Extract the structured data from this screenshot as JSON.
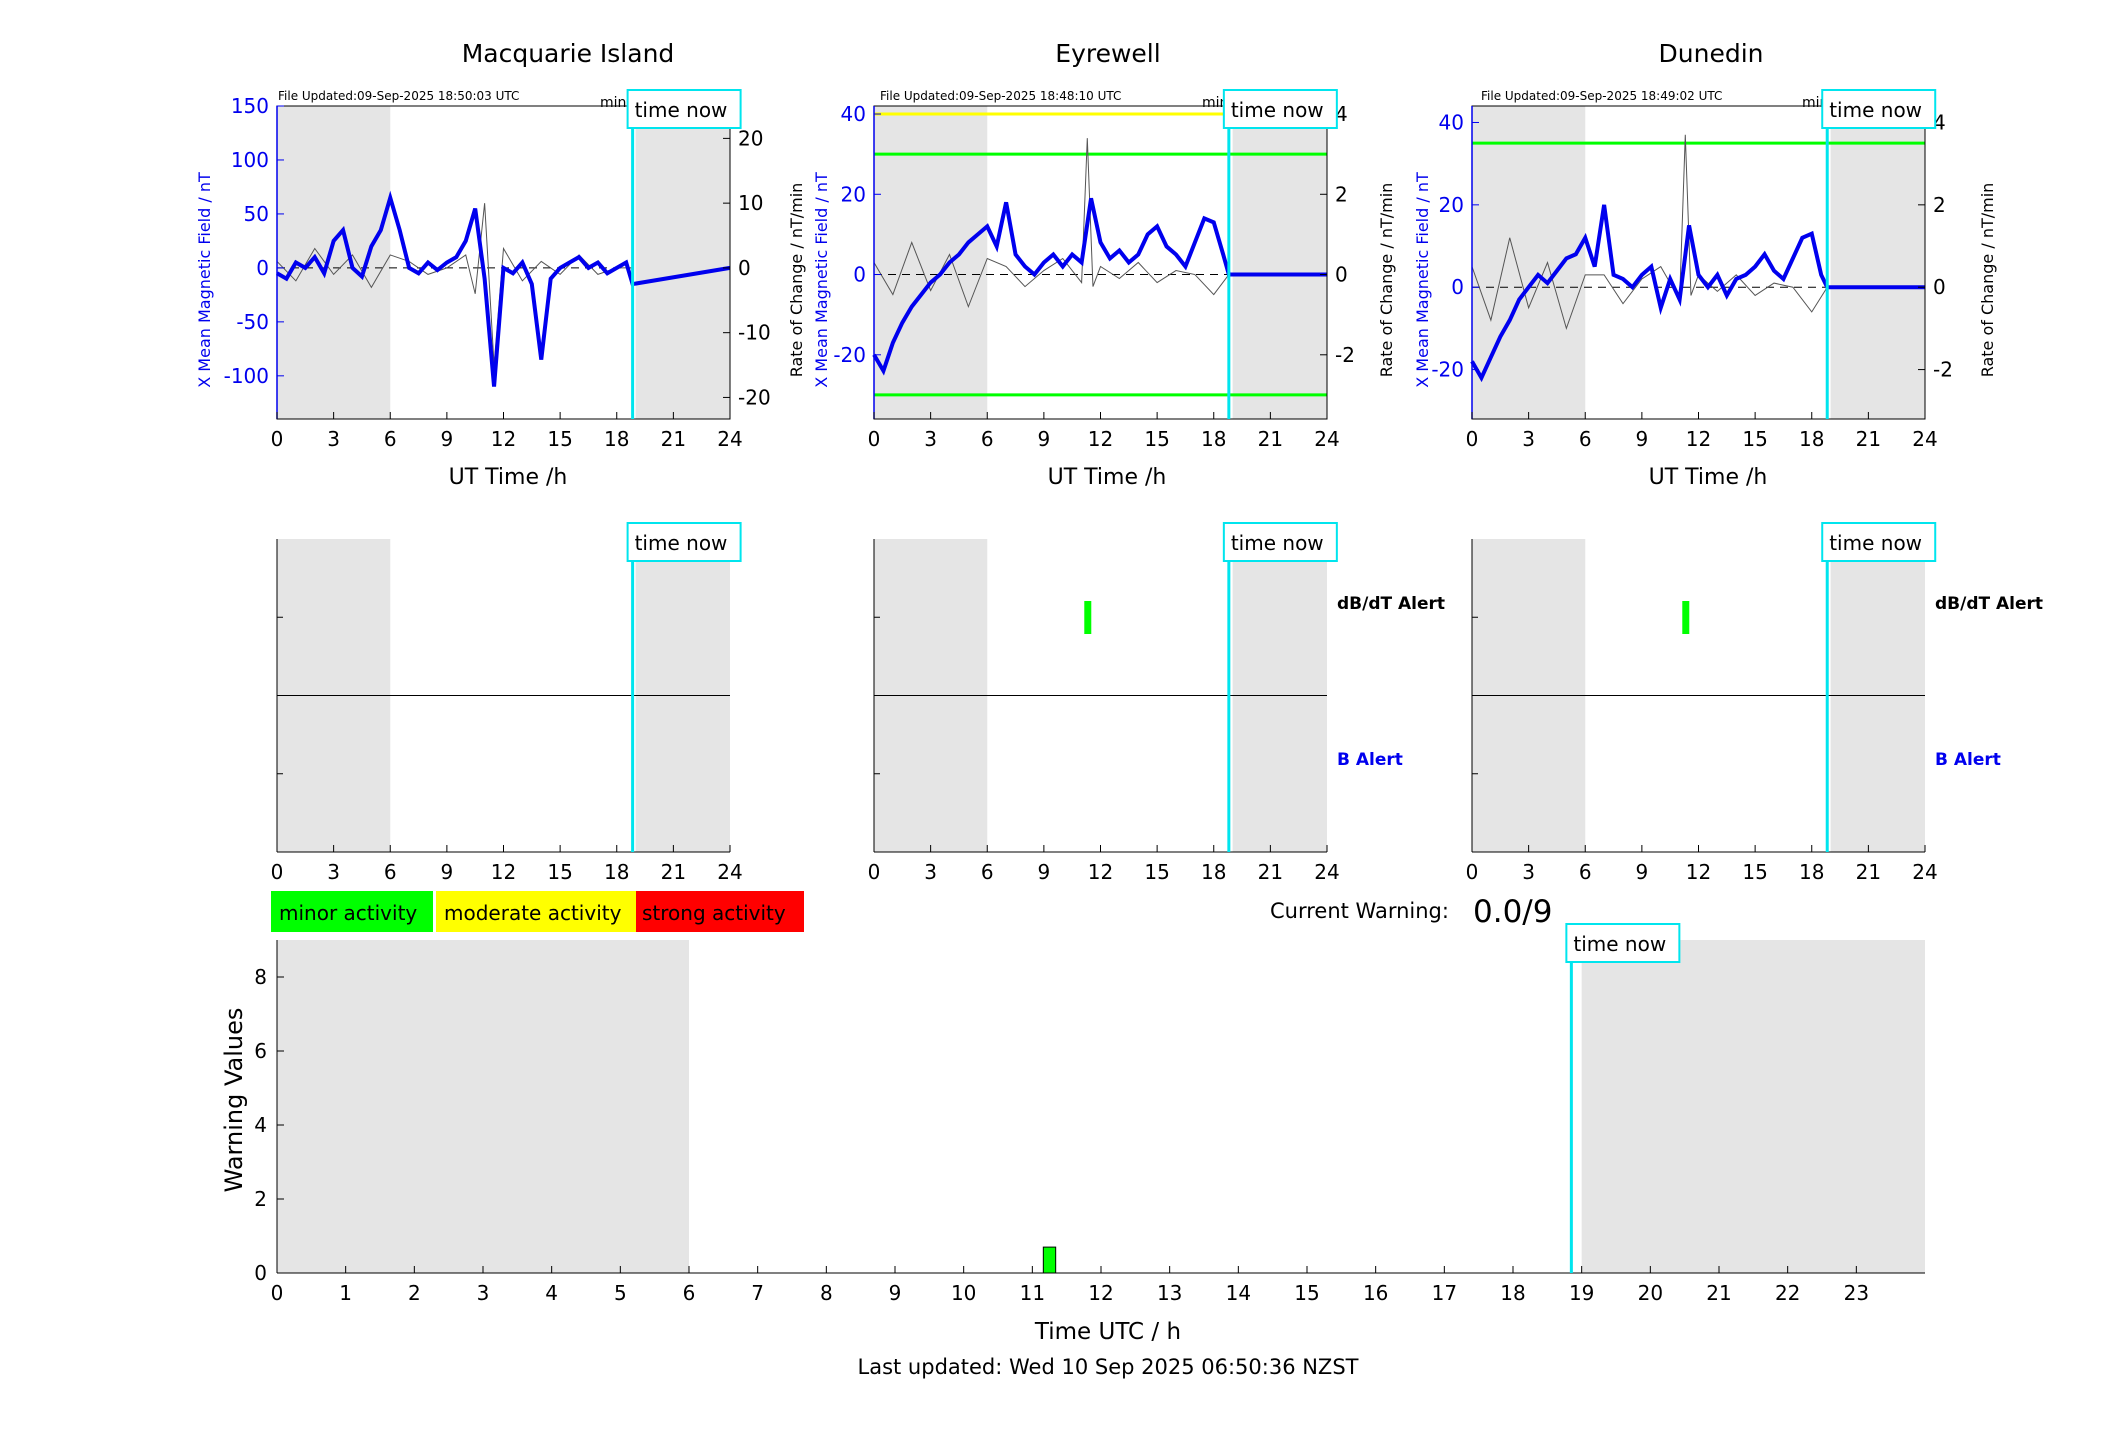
{
  "figure": {
    "last_updated": "Last updated: Wed 10 Sep 2025 06:50:36 NZST",
    "current_warning_label": "Current Warning:",
    "current_warning_value": "0.0/9",
    "time_now_label": "time now",
    "legend": [
      {
        "label": "minor activity",
        "color": "#00ff00"
      },
      {
        "label": "moderate activity",
        "color": "#ffff00"
      },
      {
        "label": "strong activity",
        "color": "#ff0000"
      }
    ]
  },
  "colors": {
    "field_line": "#0000ee",
    "rate_line": "#555555",
    "night_shade": "#e5e5e5",
    "time_now": "#00e5ee",
    "minor": "#00ff00",
    "moderate": "#ffff00",
    "strong": "#ff0000"
  },
  "chart_data": [
    {
      "type": "line",
      "title": "Macquarie Island",
      "subtitle": "File Updated:09-Sep-2025 18:50:03 UTC",
      "resolution_note": "minute resolution",
      "xlabel": "UT Time /h",
      "ylabel_left": "X Mean Magnetic Field / nT",
      "ylabel_right": "Rate of Change / nT/min",
      "xlim": [
        0,
        24
      ],
      "xticks": [
        0,
        3,
        6,
        9,
        12,
        15,
        18,
        21,
        24
      ],
      "ylim_left": [
        -140,
        150
      ],
      "yticks_left": [
        -100,
        -50,
        0,
        50,
        100,
        150
      ],
      "ylim_right": [
        -23.33,
        25
      ],
      "yticks_right": [
        -20,
        -10,
        0,
        10,
        20
      ],
      "shaded_hours": [
        [
          0,
          6
        ],
        [
          19,
          24
        ]
      ],
      "time_now_hour": 18.84,
      "threshold_lines": [],
      "series": [
        {
          "axis": "left",
          "x": [
            0,
            0.5,
            1,
            1.5,
            2,
            2.5,
            3,
            3.5,
            4,
            4.5,
            5,
            5.5,
            6,
            6.5,
            7,
            7.5,
            8,
            8.5,
            9,
            9.5,
            10,
            10.5,
            11,
            11.5,
            12,
            12.5,
            13,
            13.5,
            14,
            14.5,
            15,
            15.5,
            16,
            16.5,
            17,
            17.5,
            18,
            18.5,
            18.84,
            24
          ],
          "y": [
            -5,
            -10,
            5,
            0,
            10,
            -5,
            25,
            35,
            0,
            -8,
            20,
            35,
            65,
            35,
            0,
            -5,
            5,
            -2,
            5,
            10,
            25,
            55,
            -10,
            -110,
            0,
            -5,
            5,
            -15,
            -85,
            -10,
            0,
            5,
            10,
            0,
            5,
            -5,
            0,
            5,
            -15,
            0
          ]
        },
        {
          "axis": "right",
          "x": [
            0,
            1,
            2,
            3,
            4,
            5,
            6,
            7,
            8,
            9,
            10,
            10.5,
            11,
            11.5,
            12,
            13,
            14,
            15,
            16,
            17,
            18,
            18.84
          ],
          "y": [
            1,
            -2,
            3,
            -1,
            2,
            -3,
            2,
            1,
            -1,
            0,
            2,
            -4,
            10,
            -15,
            3,
            -2,
            1,
            -1,
            2,
            -1,
            0,
            0
          ]
        }
      ]
    },
    {
      "type": "line",
      "title": "Eyrewell",
      "subtitle": "File Updated:09-Sep-2025 18:48:10 UTC",
      "resolution_note": "minute resolution",
      "xlabel": "UT Time /h",
      "ylabel_left": "X Mean Magnetic Field / nT",
      "ylabel_right": "Rate of Change / nT/min",
      "xlim": [
        0,
        24
      ],
      "xticks": [
        0,
        3,
        6,
        9,
        12,
        15,
        18,
        21,
        24
      ],
      "ylim_left": [
        -36,
        42
      ],
      "yticks_left": [
        -20,
        0,
        20,
        40
      ],
      "ylim_right": [
        -3.6,
        4.2
      ],
      "yticks_right": [
        -2,
        0,
        2,
        4
      ],
      "shaded_hours": [
        [
          0,
          6
        ],
        [
          19,
          24
        ]
      ],
      "time_now_hour": 18.8,
      "threshold_lines": [
        {
          "value": 40,
          "color": "#ffff00"
        },
        {
          "value": 30,
          "color": "#00ff00"
        },
        {
          "value": -30,
          "color": "#00ff00"
        }
      ],
      "series": [
        {
          "axis": "left",
          "x": [
            0,
            0.5,
            1,
            1.5,
            2,
            2.5,
            3,
            3.5,
            4,
            4.5,
            5,
            5.5,
            6,
            6.5,
            7,
            7.5,
            8,
            8.5,
            9,
            9.5,
            10,
            10.5,
            11,
            11.5,
            12,
            12.5,
            13,
            13.5,
            14,
            14.5,
            15,
            15.5,
            16,
            16.5,
            17,
            17.5,
            18,
            18.5,
            18.8,
            24
          ],
          "y": [
            -20,
            -24,
            -17,
            -12,
            -8,
            -5,
            -2,
            0,
            3,
            5,
            8,
            10,
            12,
            7,
            18,
            5,
            2,
            0,
            3,
            5,
            2,
            5,
            3,
            19,
            8,
            4,
            6,
            3,
            5,
            10,
            12,
            7,
            5,
            2,
            8,
            14,
            13,
            5,
            0,
            0
          ]
        },
        {
          "axis": "right",
          "x": [
            0,
            1,
            2,
            3,
            4,
            5,
            6,
            7,
            8,
            9,
            10,
            11,
            11.3,
            11.6,
            12,
            13,
            14,
            15,
            16,
            17,
            18,
            18.8
          ],
          "y": [
            0.3,
            -0.5,
            0.8,
            -0.4,
            0.5,
            -0.8,
            0.4,
            0.2,
            -0.3,
            0.1,
            0.4,
            -0.2,
            3.4,
            -0.3,
            0.2,
            -0.1,
            0.3,
            -0.2,
            0.1,
            0,
            -0.5,
            0
          ]
        }
      ]
    },
    {
      "type": "line",
      "title": "Dunedin",
      "subtitle": "File Updated:09-Sep-2025 18:49:02 UTC",
      "resolution_note": "minute resolution",
      "xlabel": "UT Time /h",
      "ylabel_left": "X Mean Magnetic Field / nT",
      "ylabel_right": "Rate of Change / nT/min",
      "xlim": [
        0,
        24
      ],
      "xticks": [
        0,
        3,
        6,
        9,
        12,
        15,
        18,
        21,
        24
      ],
      "ylim_left": [
        -32,
        44
      ],
      "yticks_left": [
        -20,
        0,
        20,
        40
      ],
      "ylim_right": [
        -3.2,
        4.4
      ],
      "yticks_right": [
        -2,
        0,
        2,
        4
      ],
      "shaded_hours": [
        [
          0,
          6
        ],
        [
          19,
          24
        ]
      ],
      "time_now_hour": 18.82,
      "threshold_lines": [
        {
          "value": 35,
          "color": "#00ff00"
        }
      ],
      "series": [
        {
          "axis": "left",
          "x": [
            0,
            0.5,
            1,
            1.5,
            2,
            2.5,
            3,
            3.5,
            4,
            4.5,
            5,
            5.5,
            6,
            6.5,
            7,
            7.5,
            8,
            8.5,
            9,
            9.5,
            10,
            10.5,
            11,
            11.5,
            12,
            12.5,
            13,
            13.5,
            14,
            14.5,
            15,
            15.5,
            16,
            16.5,
            17,
            17.5,
            18,
            18.5,
            18.82,
            24
          ],
          "y": [
            -18,
            -22,
            -17,
            -12,
            -8,
            -3,
            0,
            3,
            1,
            4,
            7,
            8,
            12,
            5,
            20,
            3,
            2,
            0,
            3,
            5,
            -5,
            2,
            -3,
            15,
            3,
            0,
            3,
            -2,
            2,
            3,
            5,
            8,
            4,
            2,
            7,
            12,
            13,
            3,
            0,
            0
          ]
        },
        {
          "axis": "right",
          "x": [
            0,
            1,
            2,
            3,
            4,
            5,
            6,
            7,
            8,
            9,
            10,
            11,
            11.3,
            11.6,
            12,
            13,
            14,
            15,
            16,
            17,
            18,
            18.82
          ],
          "y": [
            0.5,
            -0.8,
            1.2,
            -0.5,
            0.6,
            -1,
            0.3,
            0.3,
            -0.4,
            0.2,
            0.5,
            -0.3,
            3.7,
            -0.2,
            0.3,
            -0.1,
            0.3,
            -0.2,
            0.1,
            0,
            -0.6,
            0
          ]
        }
      ]
    },
    {
      "type": "timeline",
      "xlim": [
        0,
        24
      ],
      "xticks": [
        0,
        3,
        6,
        9,
        12,
        15,
        18,
        21,
        24
      ],
      "shaded_hours": [
        [
          0,
          6
        ],
        [
          19,
          24
        ]
      ],
      "time_now_hour": 18.84,
      "row_labels": [],
      "alerts": []
    },
    {
      "type": "timeline",
      "xlim": [
        0,
        24
      ],
      "xticks": [
        0,
        3,
        6,
        9,
        12,
        15,
        18,
        21,
        24
      ],
      "shaded_hours": [
        [
          0,
          6
        ],
        [
          19,
          24
        ]
      ],
      "time_now_hour": 18.8,
      "row_labels": [
        {
          "label": "dB/dT Alert",
          "color": "#000000"
        },
        {
          "label": "B Alert",
          "color": "#0000ee"
        }
      ],
      "alerts": [
        {
          "row": "dBdT",
          "hour": 11.3,
          "color": "#00ff00"
        }
      ]
    },
    {
      "type": "timeline",
      "xlim": [
        0,
        24
      ],
      "xticks": [
        0,
        3,
        6,
        9,
        12,
        15,
        18,
        21,
        24
      ],
      "shaded_hours": [
        [
          0,
          6
        ],
        [
          19,
          24
        ]
      ],
      "time_now_hour": 18.82,
      "row_labels": [
        {
          "label": "dB/dT Alert",
          "color": "#000000"
        },
        {
          "label": "B Alert",
          "color": "#0000ee"
        }
      ],
      "alerts": [
        {
          "row": "dBdT",
          "hour": 11.3,
          "color": "#00ff00"
        }
      ]
    },
    {
      "type": "bar",
      "xlabel": "Time UTC / h",
      "ylabel": "Warning Values",
      "xlim": [
        0,
        24
      ],
      "xticks": [
        0,
        1,
        2,
        3,
        4,
        5,
        6,
        7,
        8,
        9,
        10,
        11,
        12,
        13,
        14,
        15,
        16,
        17,
        18,
        19,
        20,
        21,
        22,
        23
      ],
      "ylim": [
        0,
        9
      ],
      "yticks": [
        0,
        2,
        4,
        6,
        8
      ],
      "shaded_hours": [
        [
          0,
          6
        ],
        [
          19,
          24
        ]
      ],
      "time_now_hour": 18.85,
      "bars": [
        {
          "hour": 11.25,
          "value": 0.7,
          "color": "#00ff00"
        }
      ]
    }
  ]
}
